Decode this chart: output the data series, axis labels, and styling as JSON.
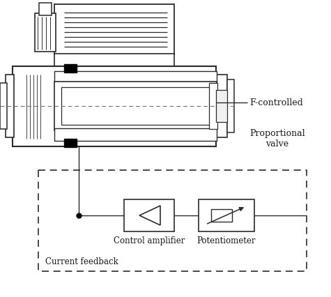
{
  "bg_color": "#ffffff",
  "line_color": "#2a2a2a",
  "text_color": "#1a1a1a",
  "fig_width": 4.75,
  "fig_height": 4.27,
  "labels": {
    "f_controlled": "F-controlled",
    "prop_valve": "Proportional\nvalve",
    "ctrl_amp": "Control amplifier",
    "current_fb": "Current feedback",
    "potentiometer": "Potentiometer"
  }
}
